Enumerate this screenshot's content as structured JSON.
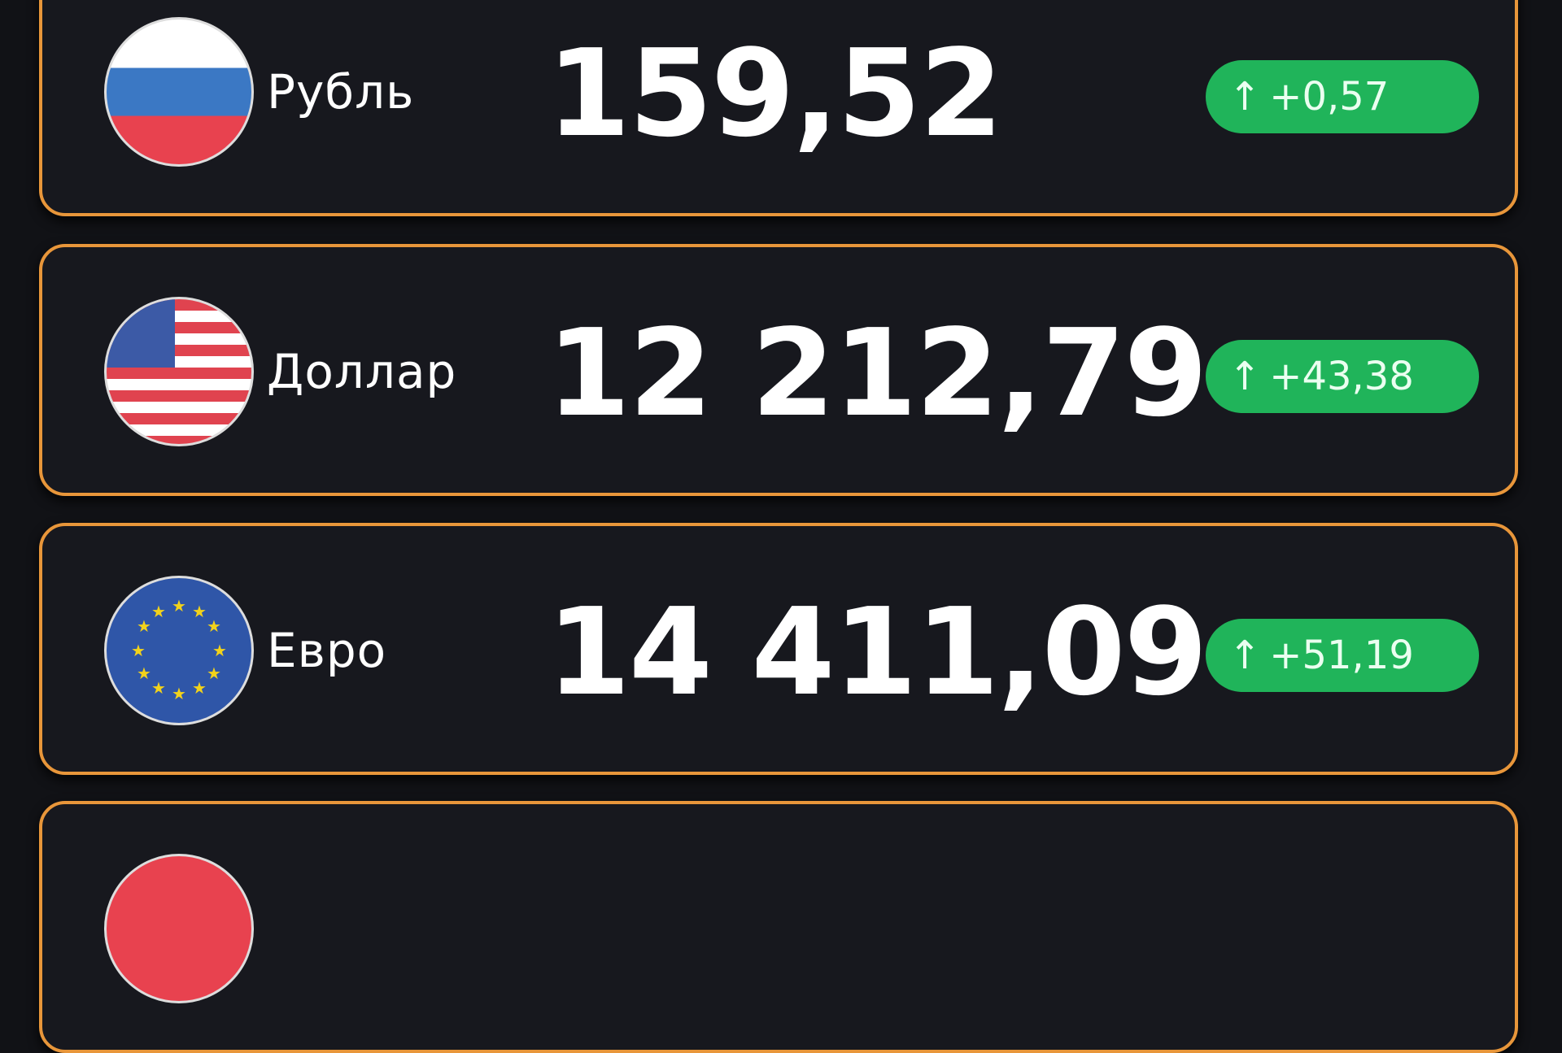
{
  "currencies": [
    {
      "name": "Рубль",
      "value": "159,52",
      "change": "+0,57",
      "direction": "up",
      "arrow": "↑",
      "flag": "russia-flag"
    },
    {
      "name": "Доллар",
      "value": "12 212,79",
      "change": "+43,38",
      "direction": "up",
      "arrow": "↑",
      "flag": "usa-flag"
    },
    {
      "name": "Евро",
      "value": "14 411,09",
      "change": "+51,19",
      "direction": "up",
      "arrow": "↑",
      "flag": "eu-flag"
    },
    {
      "flag": "china-flag"
    }
  ],
  "colors": {
    "border": "#e8963a",
    "badge_up": "#20b45a",
    "background": "#111216"
  }
}
